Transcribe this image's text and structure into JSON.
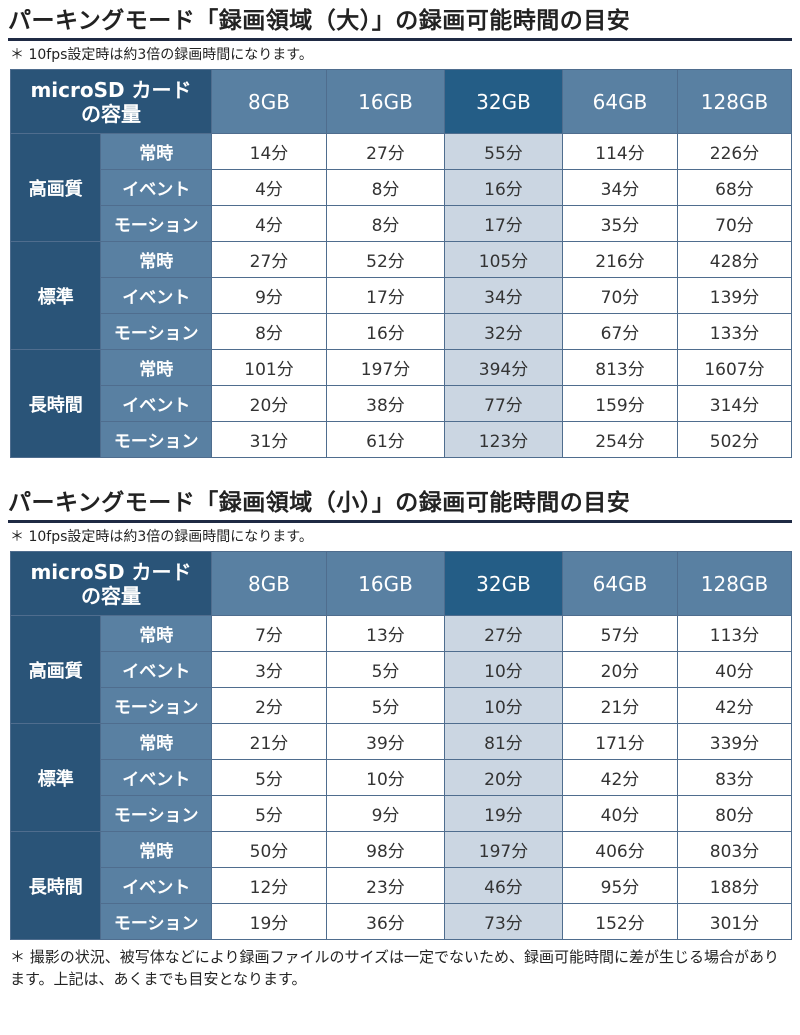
{
  "sections": [
    {
      "title": "パーキングモード「録画領域（大）」の録画可能時間の目安",
      "note": "＊ 10fps設定時は約3倍の録画時間になります。",
      "corner_line1": "microSD カード",
      "corner_line2": "の容量",
      "capacities": [
        "8GB",
        "16GB",
        "32GB",
        "64GB",
        "128GB"
      ],
      "groups": [
        {
          "name": "高画質",
          "rows": [
            {
              "mode": "常時",
              "values": [
                "14分",
                "27分",
                "55分",
                "114分",
                "226分"
              ]
            },
            {
              "mode": "イベント",
              "values": [
                "4分",
                "8分",
                "16分",
                "34分",
                "68分"
              ]
            },
            {
              "mode": "モーション",
              "values": [
                "4分",
                "8分",
                "17分",
                "35分",
                "70分"
              ]
            }
          ]
        },
        {
          "name": "標準",
          "rows": [
            {
              "mode": "常時",
              "values": [
                "27分",
                "52分",
                "105分",
                "216分",
                "428分"
              ]
            },
            {
              "mode": "イベント",
              "values": [
                "9分",
                "17分",
                "34分",
                "70分",
                "139分"
              ]
            },
            {
              "mode": "モーション",
              "values": [
                "8分",
                "16分",
                "32分",
                "67分",
                "133分"
              ]
            }
          ]
        },
        {
          "name": "長時間",
          "rows": [
            {
              "mode": "常時",
              "values": [
                "101分",
                "197分",
                "394分",
                "813分",
                "1607分"
              ]
            },
            {
              "mode": "イベント",
              "values": [
                "20分",
                "38分",
                "77分",
                "159分",
                "314分"
              ]
            },
            {
              "mode": "モーション",
              "values": [
                "31分",
                "61分",
                "123分",
                "254分",
                "502分"
              ]
            }
          ]
        }
      ]
    },
    {
      "title": "パーキングモード「録画領域（小）」の録画可能時間の目安",
      "note": "＊ 10fps設定時は約3倍の録画時間になります。",
      "corner_line1": "microSD カード",
      "corner_line2": "の容量",
      "capacities": [
        "8GB",
        "16GB",
        "32GB",
        "64GB",
        "128GB"
      ],
      "groups": [
        {
          "name": "高画質",
          "rows": [
            {
              "mode": "常時",
              "values": [
                "7分",
                "13分",
                "27分",
                "57分",
                "113分"
              ]
            },
            {
              "mode": "イベント",
              "values": [
                "3分",
                "5分",
                "10分",
                "20分",
                "40分"
              ]
            },
            {
              "mode": "モーション",
              "values": [
                "2分",
                "5分",
                "10分",
                "21分",
                "42分"
              ]
            }
          ]
        },
        {
          "name": "標準",
          "rows": [
            {
              "mode": "常時",
              "values": [
                "21分",
                "39分",
                "81分",
                "171分",
                "339分"
              ]
            },
            {
              "mode": "イベント",
              "values": [
                "5分",
                "10分",
                "20分",
                "42分",
                "83分"
              ]
            },
            {
              "mode": "モーション",
              "values": [
                "5分",
                "9分",
                "19分",
                "40分",
                "80分"
              ]
            }
          ]
        },
        {
          "name": "長時間",
          "rows": [
            {
              "mode": "常時",
              "values": [
                "50分",
                "98分",
                "197分",
                "406分",
                "803分"
              ]
            },
            {
              "mode": "イベント",
              "values": [
                "12分",
                "23分",
                "46分",
                "95分",
                "188分"
              ]
            },
            {
              "mode": "モーション",
              "values": [
                "19分",
                "36分",
                "73分",
                "152分",
                "301分"
              ]
            }
          ]
        }
      ]
    }
  ],
  "footnote": "＊ 撮影の状況、被写体などにより録画ファイルのサイズは一定でないため、録画可能時間に差が生じる場合があります。上記は、あくまでも目安となります。",
  "colors": {
    "header_dark": "#2a5478",
    "header_medium": "#5980a2",
    "header_highlight": "#245d86",
    "column_highlight": "#cbd6e2"
  }
}
